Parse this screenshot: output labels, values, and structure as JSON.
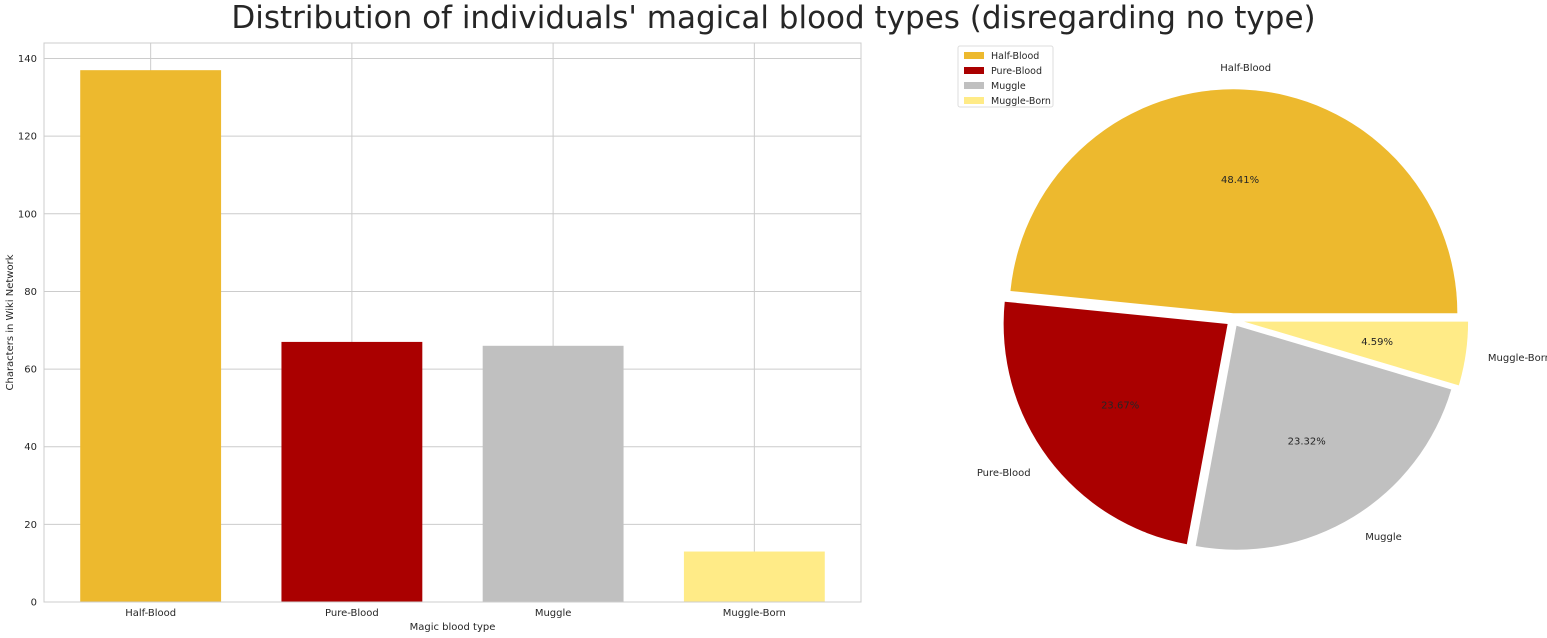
{
  "title": "Distribution of individuals' magical blood types (disregarding no type)",
  "chart_data": [
    {
      "type": "bar",
      "categories": [
        "Half-Blood",
        "Pure-Blood",
        "Muggle",
        "Muggle-Born"
      ],
      "values": [
        137,
        67,
        66,
        13
      ],
      "colors": [
        "#EDB92E",
        "#AA0000",
        "#C0C0C0",
        "#FFEB87"
      ],
      "xlabel": "Magic blood type",
      "ylabel": "Characters in Wiki Network",
      "ylim": [
        0,
        144
      ],
      "yticks": [
        0,
        20,
        40,
        60,
        80,
        100,
        120,
        140
      ],
      "grid": true
    },
    {
      "type": "pie",
      "labels": [
        "Half-Blood",
        "Pure-Blood",
        "Muggle",
        "Muggle-Born"
      ],
      "values": [
        137,
        67,
        66,
        13
      ],
      "pct_labels": [
        "48.41%",
        "23.67%",
        "23.32%",
        "4.59%"
      ],
      "colors": [
        "#EDB92E",
        "#AA0000",
        "#C0C0C0",
        "#FFEB87"
      ],
      "legend": "top-left"
    }
  ]
}
